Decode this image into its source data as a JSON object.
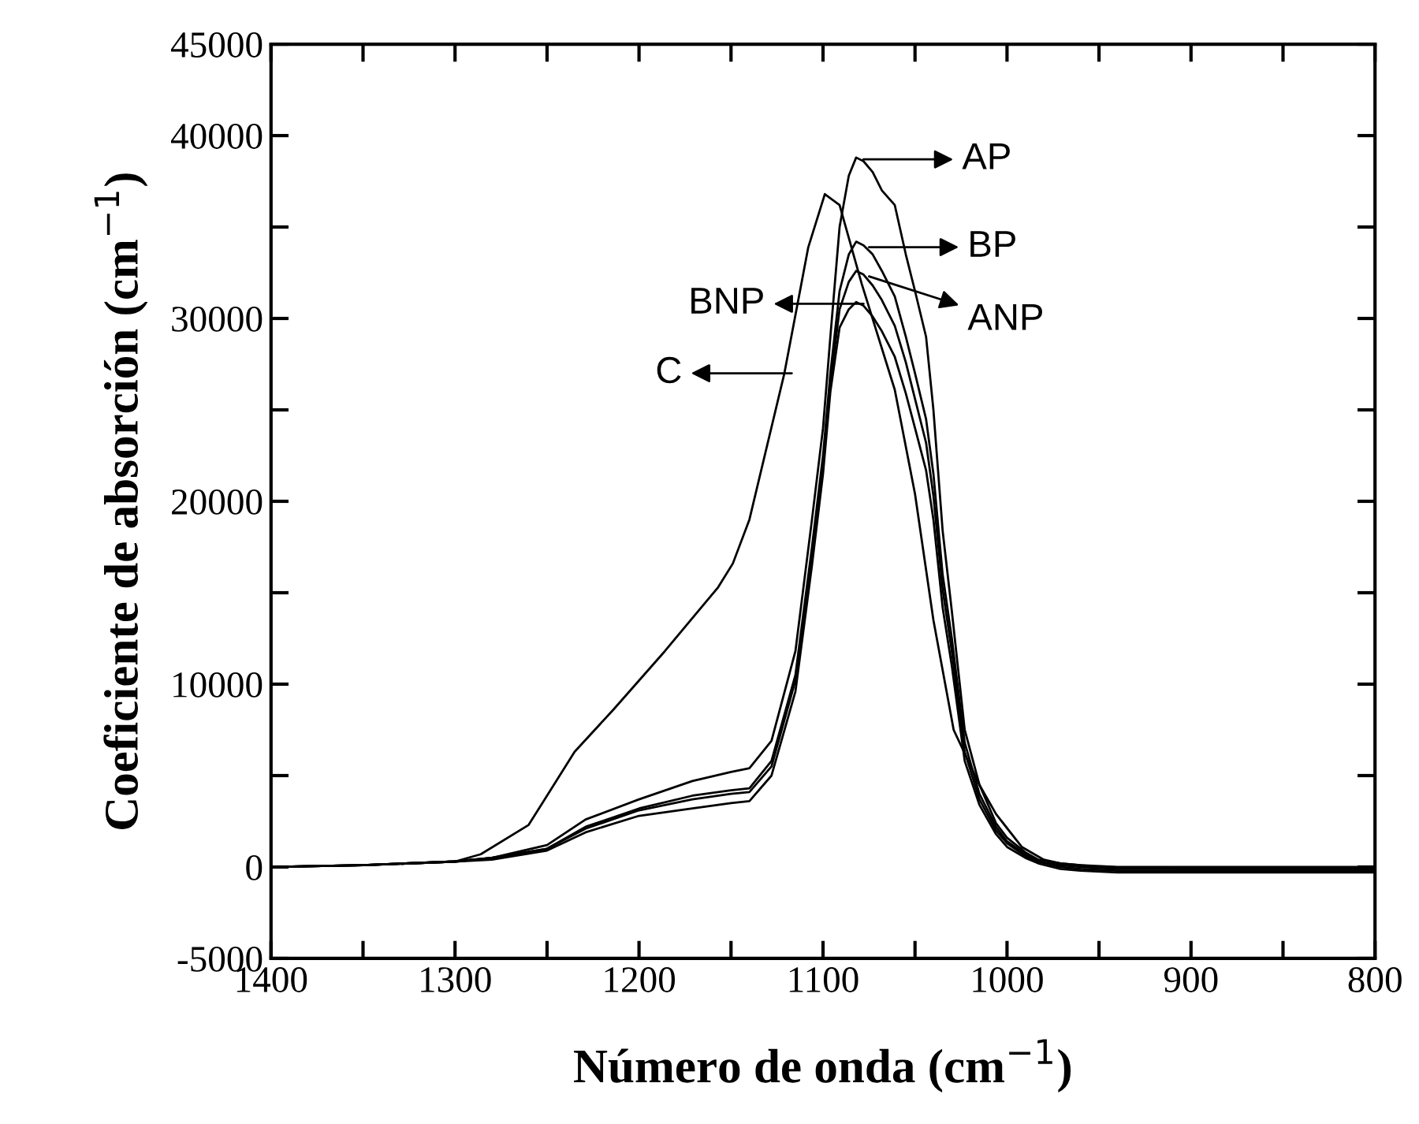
{
  "chart_data": {
    "type": "line",
    "xlabel": "Número de onda (cm$^{−1}$)",
    "ylabel": "Coeficiente de absorción (cm$^{−1}$)",
    "xlim": [
      1400,
      800
    ],
    "ylim": [
      -5000,
      45000
    ],
    "xticks": [
      1400,
      {
        "value": 1350,
        "label": null
      },
      1300,
      {
        "value": 1250,
        "label": null
      },
      1200,
      {
        "value": 1150,
        "label": null
      },
      1100,
      {
        "value": 1050,
        "label": null
      },
      1000,
      {
        "value": 950,
        "label": null
      },
      900,
      {
        "value": 850,
        "label": null
      },
      800
    ],
    "yticks": [
      -5000,
      0,
      {
        "value": 5000,
        "label": null
      },
      10000,
      {
        "value": 15000,
        "label": null
      },
      20000,
      {
        "value": 25000,
        "label": null
      },
      30000,
      {
        "value": 35000,
        "label": null
      },
      40000,
      45000
    ],
    "grid": false,
    "marker": "none",
    "line_style": "solid",
    "x": [
      1400,
      1350,
      1300,
      1280,
      1250,
      1229,
      1200,
      1171,
      1150,
      1140,
      1128,
      1115,
      1106,
      1100,
      1096,
      1091,
      1086,
      1082,
      1078,
      1073,
      1068,
      1061,
      1055,
      1050,
      1044,
      1040,
      1035,
      1030,
      1023,
      1015,
      1006,
      1000,
      990,
      983,
      971,
      960,
      940,
      900,
      850,
      800
    ],
    "series": [
      {
        "color": "#000000",
        "values": [
          0,
          100,
          300,
          500,
          1200,
          2600,
          3700,
          4700,
          5200,
          5400,
          6900,
          11800,
          19000,
          24000,
          29000,
          35000,
          37800,
          38800,
          38600,
          38000,
          37000,
          36200,
          33500,
          31500,
          29000,
          25000,
          18400,
          14000,
          7500,
          4500,
          2400,
          1600,
          800,
          400,
          200,
          100,
          0,
          0,
          0,
          0
        ]
      },
      {
        "color": "#000000",
        "values": [
          0,
          100,
          300,
          500,
          1000,
          2200,
          3200,
          3900,
          4200,
          4300,
          5800,
          10500,
          17500,
          22500,
          27000,
          31500,
          33500,
          34200,
          34000,
          33500,
          32600,
          31200,
          29000,
          27000,
          24500,
          21500,
          16000,
          12500,
          6800,
          4000,
          2200,
          1400,
          700,
          300,
          100,
          0,
          -100,
          -100,
          -100,
          -100
        ]
      },
      {
        "color": "#000000",
        "values": [
          0,
          100,
          300,
          500,
          1000,
          2100,
          3100,
          3700,
          4000,
          4100,
          5500,
          10200,
          17000,
          22000,
          26500,
          30500,
          32000,
          32600,
          32400,
          31800,
          31000,
          29600,
          27600,
          25600,
          23200,
          20300,
          15200,
          11800,
          6300,
          3700,
          2000,
          1300,
          600,
          300,
          0,
          -100,
          -200,
          -200,
          -200,
          -200
        ]
      },
      {
        "color": "#000000",
        "values": [
          0,
          100,
          300,
          400,
          900,
          1900,
          2800,
          3200,
          3500,
          3600,
          5000,
          9600,
          16500,
          21500,
          26000,
          29500,
          30500,
          30900,
          30700,
          30100,
          29300,
          27900,
          25900,
          24000,
          21700,
          19000,
          14200,
          11000,
          5800,
          3400,
          1800,
          1100,
          500,
          200,
          -100,
          -200,
          -300,
          -300,
          -300,
          -300
        ]
      },
      {
        "color": "#000000",
        "x": [
          1400,
          1350,
          1300,
          1286,
          1260,
          1235,
          1214,
          1186,
          1157,
          1149,
          1140,
          1121,
          1108,
          1099,
          1091,
          1079,
          1061,
          1050,
          1040,
          1029,
          1015,
          1006,
          992,
          980,
          971,
          950,
          900,
          850,
          800
        ],
        "values": [
          0,
          100,
          300,
          700,
          2300,
          6300,
          8600,
          11800,
          15300,
          16600,
          19000,
          27000,
          33900,
          36800,
          36200,
          31900,
          26100,
          20400,
          13500,
          7500,
          4500,
          2900,
          1100,
          400,
          200,
          0,
          -100,
          -100,
          -100
        ]
      }
    ],
    "annotations": [
      {
        "text": "AP",
        "x": 1078,
        "y": 38700
      },
      {
        "text": "BP",
        "x": 1075,
        "y": 33900
      },
      {
        "text": "ANP",
        "x": 1075,
        "y": 32300
      },
      {
        "text": "BNP",
        "x": 1078,
        "y": 30800
      },
      {
        "text": "C",
        "x": 1117,
        "y": 27000
      }
    ]
  }
}
